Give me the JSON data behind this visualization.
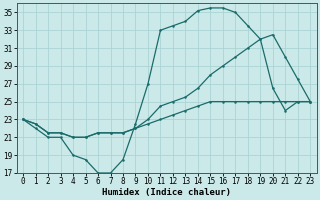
{
  "xlabel": "Humidex (Indice chaleur)",
  "background_color": "#cce9e9",
  "grid_color": "#aad4d4",
  "line_color": "#1a6b6b",
  "xlim": [
    -0.5,
    23.5
  ],
  "ylim": [
    17,
    36
  ],
  "yticks": [
    17,
    19,
    21,
    23,
    25,
    27,
    29,
    31,
    33,
    35
  ],
  "xticks": [
    0,
    1,
    2,
    3,
    4,
    5,
    6,
    7,
    8,
    9,
    10,
    11,
    12,
    13,
    14,
    15,
    16,
    17,
    18,
    19,
    20,
    21,
    22,
    23
  ],
  "curve1_x": [
    0,
    1,
    2,
    3,
    4,
    5,
    6,
    7,
    8,
    9,
    10,
    11,
    12,
    13,
    14,
    15,
    16,
    17,
    18,
    19,
    20,
    21,
    22,
    23
  ],
  "curve1_y": [
    23,
    22,
    21,
    21,
    19,
    18.5,
    17,
    17,
    18.5,
    22.5,
    27,
    33,
    33.5,
    34,
    35.2,
    35.5,
    35.5,
    35,
    33.5,
    32,
    26.5,
    24,
    25,
    25
  ],
  "curve2_x": [
    0,
    1,
    2,
    3,
    4,
    5,
    6,
    7,
    8,
    9,
    10,
    11,
    12,
    13,
    14,
    15,
    16,
    17,
    18,
    19,
    20,
    21,
    22,
    23
  ],
  "curve2_y": [
    23,
    22.5,
    21.5,
    21.5,
    21,
    21,
    21.5,
    21.5,
    21.5,
    22,
    23,
    24.5,
    25,
    25.5,
    26.5,
    28,
    29,
    30,
    31,
    32,
    32.5,
    30,
    27.5,
    25
  ],
  "curve3_x": [
    0,
    1,
    2,
    3,
    4,
    5,
    6,
    7,
    8,
    9,
    10,
    11,
    12,
    13,
    14,
    15,
    16,
    17,
    18,
    19,
    20,
    21,
    22,
    23
  ],
  "curve3_y": [
    23,
    22.5,
    21.5,
    21.5,
    21,
    21,
    21.5,
    21.5,
    21.5,
    22,
    22.5,
    23,
    23.5,
    24,
    24.5,
    25,
    25,
    25,
    25,
    25,
    25,
    25,
    25,
    25
  ],
  "tick_fontsize": 5.5,
  "xlabel_fontsize": 6.5,
  "marker_size": 1.8,
  "line_width": 0.9
}
